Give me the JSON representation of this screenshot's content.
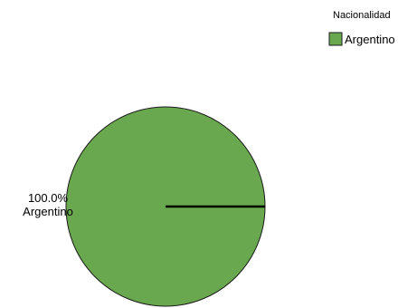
{
  "chart_data": {
    "type": "pie",
    "legend": {
      "title": "Nacionalidad",
      "placement": "top-right"
    },
    "slices": [
      {
        "name": "Argentino",
        "value": 100.0,
        "label": "100.0%",
        "color": "#6aa84f"
      }
    ],
    "start_angle_deg": 0,
    "direction": "counterclockwise"
  }
}
